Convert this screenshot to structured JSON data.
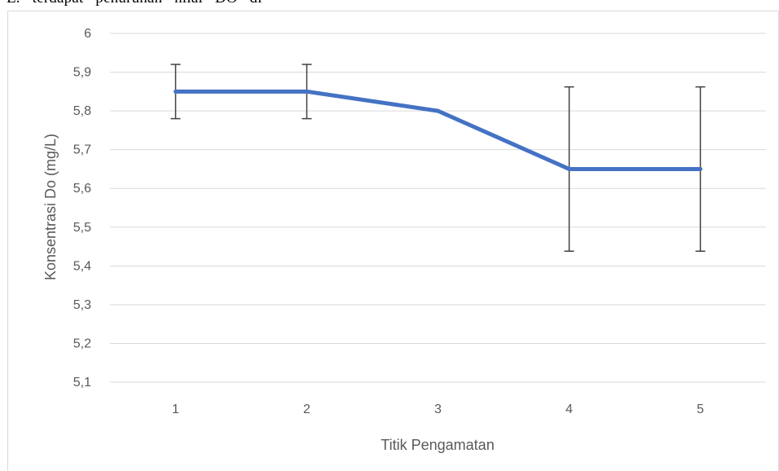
{
  "document_fragment": "E.   terdapat   penurunan   nilai   DO   di",
  "chart_data": {
    "type": "line",
    "categories": [
      "1",
      "2",
      "3",
      "4",
      "5"
    ],
    "series": [
      {
        "values": [
          5.85,
          5.85,
          5.8,
          5.65,
          5.65
        ],
        "error": [
          0.07,
          0.07,
          0,
          0.212,
          0.212
        ],
        "color": "#4472C4"
      }
    ],
    "xlabel": "Titik Pengamatan",
    "ylabel": "Konsentrasi Do (mg/L)",
    "ylim": [
      5.1,
      6.0
    ],
    "ytick_step": 0.1,
    "ytick_labels": [
      "5,1",
      "5,2",
      "5,3",
      "5,4",
      "5,5",
      "5,6",
      "5,7",
      "5,8",
      "5,9",
      "6"
    ],
    "grid": true,
    "legend": "none",
    "colors": {
      "gridline": "#D9D9D9",
      "errorbar": "#404040",
      "border": "#D9D9D9"
    }
  }
}
